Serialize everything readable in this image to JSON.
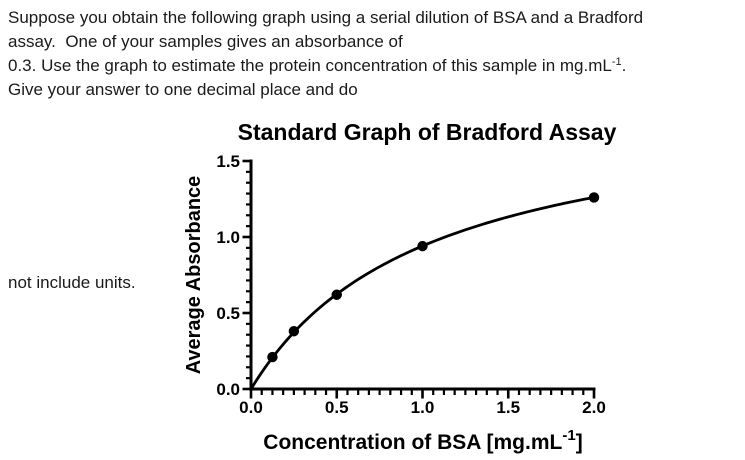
{
  "colors": {
    "background": "#ffffff",
    "text": "#1a1a1a",
    "chart_ink": "#000000"
  },
  "question": {
    "line1": "Suppose you obtain the following graph using a serial dilution of BSA and a Bradford",
    "line2": "assay.  One of your samples gives an absorbance of",
    "line3_pre": "0.3. Use the graph to estimate the protein concentration of this sample in mg.mL",
    "line3_sup": "-1",
    "line3_post": ".",
    "line4": "Give your answer to one decimal place and do",
    "line5": "not include units."
  },
  "chart_data": {
    "type": "scatter",
    "title": "Standard Graph of Bradford Assay",
    "xlabel": "Concentration of BSA [mg.mL⁻¹]",
    "xlabel_parts": {
      "main": "Concentration of BSA [mg.mL",
      "sup": "-1",
      "close": "]"
    },
    "ylabel": "Average Absorbance",
    "x": [
      0.125,
      0.25,
      0.5,
      1.0,
      2.0
    ],
    "y": [
      0.21,
      0.38,
      0.62,
      0.94,
      1.26
    ],
    "xlim": [
      0,
      2.0
    ],
    "ylim": [
      0,
      1.5
    ],
    "x_ticks": [
      0,
      0.5,
      1.0,
      1.5,
      2.0
    ],
    "x_tick_labels": [
      "0.0",
      "0.5",
      "1.0",
      "1.5",
      "2.0"
    ],
    "y_ticks": [
      0,
      0.5,
      1.0,
      1.5
    ],
    "y_tick_labels": [
      "0.0",
      "0.5",
      "1.0",
      "1.5"
    ],
    "x_minor_divisions_per_major": 8,
    "y_minor_divisions_per_major": 7,
    "fit_curve": {
      "model": "y = Vmax*x/(Km+x)",
      "vmax": 1.91,
      "km": 1.03,
      "passes_through_origin": true
    },
    "marker": "filled-circle",
    "series_color": "#000000",
    "grid": false,
    "legend": "none"
  }
}
